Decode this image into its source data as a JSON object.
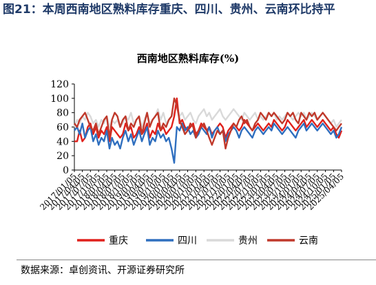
{
  "figure": {
    "title": "图21：本周西南地区熟料库存重庆、四川、贵州、云南环比持平",
    "source": "数据来源：卓创资讯、开源证券研究所"
  },
  "chart_data": {
    "type": "line",
    "title": "西南地区熟料库存(%)",
    "xlabel": "",
    "ylabel": "",
    "ylim": [
      0,
      120
    ],
    "yticks": [
      0,
      20,
      40,
      60,
      80,
      100,
      120
    ],
    "x_start": "2017/01/05",
    "x_end": "2025/04/05",
    "x_tick_labels": [
      "2017/01/05",
      "2017/04/05",
      "2017/07/05",
      "2017/10/05",
      "2018/01/05",
      "2018/04/05",
      "2018/07/05",
      "2018/10/05",
      "2019/01/05",
      "2019/04/05",
      "2019/07/05",
      "2019/10/05",
      "2020/01/05",
      "2020/04/05",
      "2020/07/05",
      "2020/10/05",
      "2021/01/05",
      "2021/04/05",
      "2021/07/05",
      "2021/10/05",
      "2022/01/05",
      "2022/04/05",
      "2022/07/05",
      "2022/10/05",
      "2023/01/05",
      "2023/04/05",
      "2023/07/05",
      "2023/10/05",
      "2024/01/05",
      "2024/04/05",
      "2024/07/05",
      "2024/10/05",
      "2025/01/05",
      "2025/04/05"
    ],
    "grid": false,
    "legend_position": "bottom",
    "series": [
      {
        "name": "重庆",
        "color": "#e0201b",
        "x": [
          "2017/01/05",
          "2017/02/05",
          "2017/03/05",
          "2017/04/05",
          "2017/05/05",
          "2017/06/05",
          "2017/07/05",
          "2017/08/05",
          "2017/09/05",
          "2017/10/05",
          "2017/11/05",
          "2017/12/05",
          "2018/01/05",
          "2018/02/05",
          "2018/03/05",
          "2018/04/05",
          "2018/05/05",
          "2018/06/05",
          "2018/07/05",
          "2018/08/05",
          "2018/09/05",
          "2018/10/05",
          "2018/11/05",
          "2018/12/05",
          "2019/01/05",
          "2019/02/05",
          "2019/03/05",
          "2019/04/05",
          "2019/05/05",
          "2019/06/05",
          "2019/07/05",
          "2019/08/05",
          "2019/09/05",
          "2019/10/05",
          "2019/11/05",
          "2019/12/05",
          "2020/01/05",
          "2020/02/05",
          "2020/03/05",
          "2020/04/05",
          "2020/05/05",
          "2020/06/05",
          "2020/07/05",
          "2020/08/05",
          "2020/09/05",
          "2020/10/05",
          "2020/11/05",
          "2020/12/05",
          "2021/01/05",
          "2021/02/05",
          "2021/03/05",
          "2021/04/05",
          "2021/05/05",
          "2021/06/05",
          "2021/07/05",
          "2021/08/05",
          "2021/09/05",
          "2021/10/05",
          "2021/11/05",
          "2021/12/05",
          "2022/01/05",
          "2022/02/05",
          "2022/03/05",
          "2022/04/05",
          "2022/05/05",
          "2022/06/05",
          "2022/07/05",
          "2022/08/05",
          "2022/09/05",
          "2022/10/05",
          "2022/11/05",
          "2022/12/05",
          "2023/01/05",
          "2023/02/05",
          "2023/03/05",
          "2023/04/05",
          "2023/05/05",
          "2023/06/05",
          "2023/07/05",
          "2023/08/05",
          "2023/09/05",
          "2023/10/05",
          "2023/11/05",
          "2023/12/05",
          "2024/01/05",
          "2024/02/05",
          "2024/03/05",
          "2024/04/05",
          "2024/05/05",
          "2024/06/05",
          "2024/07/05",
          "2024/08/05",
          "2024/09/05",
          "2024/10/05",
          "2024/11/05",
          "2024/12/05",
          "2025/01/05",
          "2025/02/05",
          "2025/03/05",
          "2025/04/05"
        ],
        "values": [
          40,
          40,
          55,
          40,
          45,
          60,
          65,
          50,
          60,
          45,
          55,
          50,
          60,
          40,
          60,
          55,
          50,
          45,
          50,
          65,
          55,
          60,
          45,
          50,
          60,
          50,
          55,
          65,
          45,
          55,
          50,
          65,
          55,
          60,
          50,
          55,
          60,
          75,
          100,
          65,
          70,
          60,
          55,
          60,
          65,
          50,
          55,
          65,
          60,
          55,
          60,
          50,
          55,
          60,
          65,
          60,
          45,
          55,
          60,
          65,
          60,
          55,
          60,
          70,
          65,
          60,
          55,
          60,
          65,
          60,
          55,
          60,
          65,
          60,
          70,
          65,
          60,
          55,
          60,
          70,
          65,
          60,
          55,
          60,
          65,
          70,
          60,
          65,
          70,
          65,
          60,
          65,
          70,
          65,
          60,
          55,
          60,
          50,
          45,
          55
        ]
      },
      {
        "name": "四川",
        "color": "#2f6fbf",
        "x": [
          "2017/01/05",
          "2017/02/05",
          "2017/03/05",
          "2017/04/05",
          "2017/05/05",
          "2017/06/05",
          "2017/07/05",
          "2017/08/05",
          "2017/09/05",
          "2017/10/05",
          "2017/11/05",
          "2017/12/05",
          "2018/01/05",
          "2018/02/05",
          "2018/03/05",
          "2018/04/05",
          "2018/05/05",
          "2018/06/05",
          "2018/07/05",
          "2018/08/05",
          "2018/09/05",
          "2018/10/05",
          "2018/11/05",
          "2018/12/05",
          "2019/01/05",
          "2019/02/05",
          "2019/03/05",
          "2019/04/05",
          "2019/05/05",
          "2019/06/05",
          "2019/07/05",
          "2019/08/05",
          "2019/09/05",
          "2019/10/05",
          "2019/11/05",
          "2019/12/05",
          "2020/01/05",
          "2020/02/05",
          "2020/03/05",
          "2020/04/05",
          "2020/05/05",
          "2020/06/05",
          "2020/07/05",
          "2020/08/05",
          "2020/09/05",
          "2020/10/05",
          "2020/11/05",
          "2020/12/05",
          "2021/01/05",
          "2021/02/05",
          "2021/03/05",
          "2021/04/05",
          "2021/05/05",
          "2021/06/05",
          "2021/07/05",
          "2021/08/05",
          "2021/09/05",
          "2021/10/05",
          "2021/11/05",
          "2021/12/05",
          "2022/01/05",
          "2022/02/05",
          "2022/03/05",
          "2022/04/05",
          "2022/05/05",
          "2022/06/05",
          "2022/07/05",
          "2022/08/05",
          "2022/09/05",
          "2022/10/05",
          "2022/11/05",
          "2022/12/05",
          "2023/01/05",
          "2023/02/05",
          "2023/03/05",
          "2023/04/05",
          "2023/05/05",
          "2023/06/05",
          "2023/07/05",
          "2023/08/05",
          "2023/09/05",
          "2023/10/05",
          "2023/11/05",
          "2023/12/05",
          "2024/01/05",
          "2024/02/05",
          "2024/03/05",
          "2024/04/05",
          "2024/05/05",
          "2024/06/05",
          "2024/07/05",
          "2024/08/05",
          "2024/09/05",
          "2024/10/05",
          "2024/11/05",
          "2024/12/05",
          "2025/01/05",
          "2025/02/05",
          "2025/03/05",
          "2025/04/05"
        ],
        "values": [
          55,
          60,
          50,
          65,
          45,
          55,
          60,
          40,
          50,
          35,
          45,
          40,
          55,
          30,
          45,
          35,
          40,
          30,
          45,
          55,
          40,
          50,
          35,
          45,
          55,
          40,
          50,
          60,
          35,
          45,
          40,
          55,
          45,
          50,
          40,
          45,
          30,
          10,
          60,
          55,
          65,
          55,
          60,
          50,
          55,
          45,
          50,
          60,
          55,
          50,
          60,
          45,
          55,
          60,
          50,
          55,
          40,
          50,
          55,
          60,
          55,
          45,
          55,
          60,
          55,
          50,
          45,
          55,
          60,
          55,
          50,
          55,
          60,
          55,
          65,
          60,
          55,
          50,
          55,
          60,
          55,
          50,
          45,
          55,
          60,
          65,
          55,
          60,
          65,
          60,
          55,
          60,
          65,
          60,
          55,
          50,
          55,
          45,
          50,
          60
        ]
      },
      {
        "name": "贵州",
        "color": "#d9d9d9",
        "x": [
          "2017/01/05",
          "2017/02/05",
          "2017/03/05",
          "2017/04/05",
          "2017/05/05",
          "2017/06/05",
          "2017/07/05",
          "2017/08/05",
          "2017/09/05",
          "2017/10/05",
          "2017/11/05",
          "2017/12/05",
          "2018/01/05",
          "2018/02/05",
          "2018/03/05",
          "2018/04/05",
          "2018/05/05",
          "2018/06/05",
          "2018/07/05",
          "2018/08/05",
          "2018/09/05",
          "2018/10/05",
          "2018/11/05",
          "2018/12/05",
          "2019/01/05",
          "2019/02/05",
          "2019/03/05",
          "2019/04/05",
          "2019/05/05",
          "2019/06/05",
          "2019/07/05",
          "2019/08/05",
          "2019/09/05",
          "2019/10/05",
          "2019/11/05",
          "2019/12/05",
          "2020/01/05",
          "2020/02/05",
          "2020/03/05",
          "2020/04/05",
          "2020/05/05",
          "2020/06/05",
          "2020/07/05",
          "2020/08/05",
          "2020/09/05",
          "2020/10/05",
          "2020/11/05",
          "2020/12/05",
          "2021/01/05",
          "2021/02/05",
          "2021/03/05",
          "2021/04/05",
          "2021/05/05",
          "2021/06/05",
          "2021/07/05",
          "2021/08/05",
          "2021/09/05",
          "2021/10/05",
          "2021/11/05",
          "2021/12/05",
          "2022/01/05",
          "2022/02/05",
          "2022/03/05",
          "2022/04/05",
          "2022/05/05",
          "2022/06/05",
          "2022/07/05",
          "2022/08/05",
          "2022/09/05",
          "2022/10/05",
          "2022/11/05",
          "2022/12/05",
          "2023/01/05",
          "2023/02/05",
          "2023/03/05",
          "2023/04/05",
          "2023/05/05",
          "2023/06/05",
          "2023/07/05",
          "2023/08/05",
          "2023/09/05",
          "2023/10/05",
          "2023/11/05",
          "2023/12/05",
          "2024/01/05",
          "2024/02/05",
          "2024/03/05",
          "2024/04/05",
          "2024/05/05",
          "2024/06/05",
          "2024/07/05",
          "2024/08/05",
          "2024/09/05",
          "2024/10/05",
          "2024/11/05",
          "2024/12/05",
          "2025/01/05",
          "2025/02/05",
          "2025/03/05",
          "2025/04/05"
        ],
        "values": [
          60,
          70,
          65,
          75,
          70,
          80,
          75,
          65,
          70,
          60,
          70,
          65,
          75,
          60,
          70,
          65,
          70,
          60,
          65,
          75,
          70,
          80,
          65,
          70,
          75,
          60,
          70,
          80,
          65,
          70,
          75,
          85,
          70,
          80,
          65,
          70,
          75,
          80,
          90,
          75,
          80,
          70,
          75,
          80,
          70,
          65,
          75,
          80,
          85,
          75,
          80,
          70,
          75,
          80,
          85,
          75,
          70,
          75,
          80,
          85,
          80,
          75,
          70,
          80,
          75,
          70,
          75,
          80,
          70,
          75,
          70,
          75,
          80,
          75,
          80,
          70,
          75,
          70,
          75,
          80,
          75,
          70,
          75,
          80,
          75,
          80,
          70,
          75,
          80,
          75,
          70,
          75,
          80,
          75,
          70,
          65,
          70,
          60,
          65,
          70
        ]
      },
      {
        "name": "云南",
        "color": "#c0392b",
        "x": [
          "2017/01/05",
          "2017/02/05",
          "2017/03/05",
          "2017/04/05",
          "2017/05/05",
          "2017/06/05",
          "2017/07/05",
          "2017/08/05",
          "2017/09/05",
          "2017/10/05",
          "2017/11/05",
          "2017/12/05",
          "2018/01/05",
          "2018/02/05",
          "2018/03/05",
          "2018/04/05",
          "2018/05/05",
          "2018/06/05",
          "2018/07/05",
          "2018/08/05",
          "2018/09/05",
          "2018/10/05",
          "2018/11/05",
          "2018/12/05",
          "2019/01/05",
          "2019/02/05",
          "2019/03/05",
          "2019/04/05",
          "2019/05/05",
          "2019/06/05",
          "2019/07/05",
          "2019/08/05",
          "2019/09/05",
          "2019/10/05",
          "2019/11/05",
          "2019/12/05",
          "2020/01/05",
          "2020/02/05",
          "2020/03/05",
          "2020/04/05",
          "2020/05/05",
          "2020/06/05",
          "2020/07/05",
          "2020/08/05",
          "2020/09/05",
          "2020/10/05",
          "2020/11/05",
          "2020/12/05",
          "2021/01/05",
          "2021/02/05",
          "2021/03/05",
          "2021/04/05",
          "2021/05/05",
          "2021/06/05",
          "2021/07/05",
          "2021/08/05",
          "2021/09/05",
          "2021/10/05",
          "2021/11/05",
          "2021/12/05",
          "2022/01/05",
          "2022/02/05",
          "2022/03/05",
          "2022/04/05",
          "2022/05/05",
          "2022/06/05",
          "2022/07/05",
          "2022/08/05",
          "2022/09/05",
          "2022/10/05",
          "2022/11/05",
          "2022/12/05",
          "2023/01/05",
          "2023/02/05",
          "2023/03/05",
          "2023/04/05",
          "2023/05/05",
          "2023/06/05",
          "2023/07/05",
          "2023/08/05",
          "2023/09/05",
          "2023/10/05",
          "2023/11/05",
          "2023/12/05",
          "2024/01/05",
          "2024/02/05",
          "2024/03/05",
          "2024/04/05",
          "2024/05/05",
          "2024/06/05",
          "2024/07/05",
          "2024/08/05",
          "2024/09/05",
          "2024/10/05",
          "2024/11/05",
          "2024/12/05",
          "2025/01/05",
          "2025/02/05",
          "2025/03/05",
          "2025/04/05"
        ],
        "values": [
          65,
          60,
          70,
          75,
          80,
          70,
          60,
          55,
          65,
          50,
          60,
          70,
          75,
          45,
          70,
          80,
          75,
          60,
          70,
          75,
          55,
          65,
          60,
          70,
          75,
          50,
          65,
          80,
          60,
          70,
          75,
          80,
          55,
          65,
          60,
          70,
          75,
          100,
          90,
          70,
          60,
          50,
          55,
          65,
          60,
          45,
          55,
          60,
          65,
          55,
          45,
          35,
          45,
          55,
          50,
          55,
          30,
          45,
          55,
          65,
          60,
          70,
          75,
          65,
          70,
          60,
          55,
          65,
          70,
          80,
          75,
          70,
          80,
          75,
          80,
          75,
          70,
          65,
          70,
          80,
          75,
          80,
          70,
          65,
          80,
          75,
          70,
          80,
          75,
          80,
          70,
          75,
          80,
          75,
          70,
          65,
          60,
          55,
          60,
          65
        ]
      }
    ]
  }
}
